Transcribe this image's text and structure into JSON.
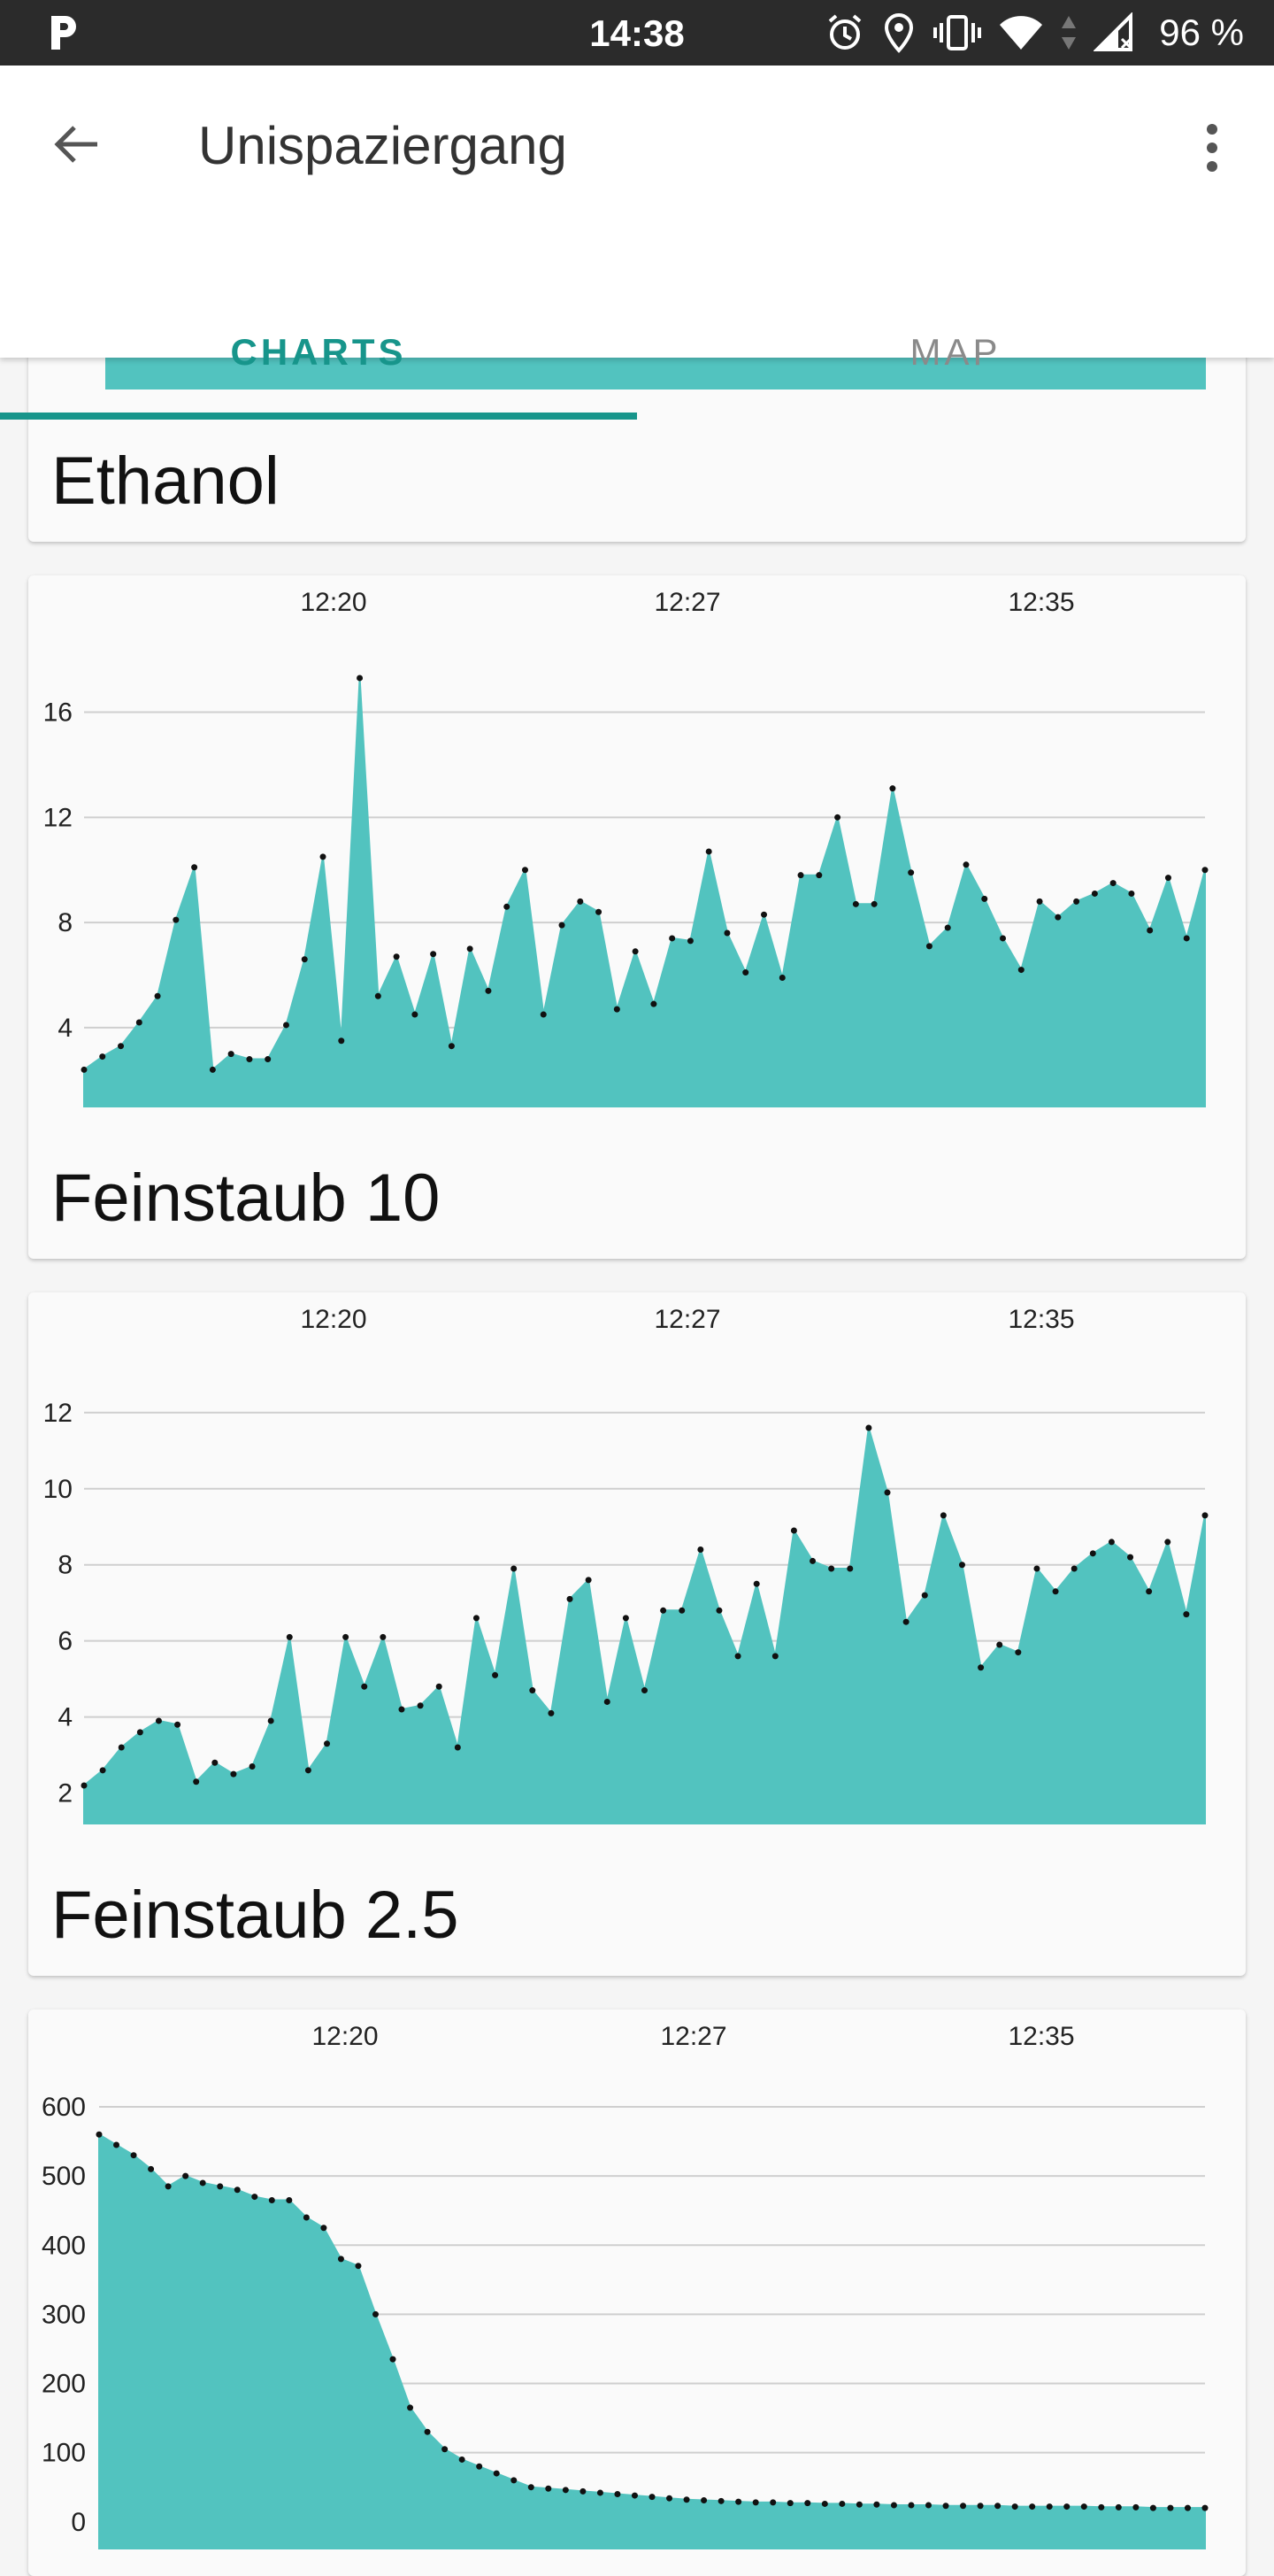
{
  "status_bar": {
    "time": "14:38",
    "battery": "96 %",
    "icons": [
      "p-icon",
      "alarm-icon",
      "location-icon",
      "vibrate-icon",
      "wifi-icon",
      "data-arrows-icon",
      "signal-icon"
    ]
  },
  "app_bar": {
    "title": "Unispaziergang",
    "icons": [
      "back-arrow-icon",
      "more-vert-icon"
    ]
  },
  "tabs": [
    {
      "label": "CHARTS",
      "active": true
    },
    {
      "label": "MAP",
      "active": false
    }
  ],
  "colors": {
    "accent": "#17958b",
    "fill": "#52c3bf",
    "grid": "#cfcfcf"
  },
  "cards": [
    {
      "title": "Ethanol"
    },
    {
      "title": "Feinstaub 10"
    },
    {
      "title": "Feinstaub 2.5"
    }
  ],
  "chart_data": [
    {
      "type": "area",
      "title": "Feinstaub 10",
      "x_ticks": [
        "12:20",
        "12:27",
        "12:35"
      ],
      "y_ticks": [
        4,
        8,
        12,
        16
      ],
      "ylim": [
        1,
        17.5
      ],
      "grid": true,
      "values": [
        2.4,
        2.9,
        3.3,
        4.2,
        5.2,
        8.1,
        10.1,
        2.4,
        3.0,
        2.8,
        2.8,
        4.1,
        6.6,
        10.5,
        3.5,
        17.3,
        5.2,
        6.7,
        4.5,
        6.8,
        3.3,
        7.0,
        5.4,
        8.6,
        10.0,
        4.5,
        7.9,
        8.8,
        8.4,
        4.7,
        6.9,
        4.9,
        7.4,
        7.3,
        10.7,
        7.6,
        6.1,
        8.3,
        5.9,
        9.8,
        9.8,
        12.0,
        8.7,
        8.7,
        13.1,
        9.9,
        7.1,
        7.8,
        10.2,
        8.9,
        7.4,
        6.2,
        8.8,
        8.2,
        8.8,
        9.1,
        9.5,
        9.1,
        7.7,
        9.7,
        7.4,
        10.0
      ]
    },
    {
      "type": "area",
      "title": "Feinstaub 2.5",
      "x_ticks": [
        "12:20",
        "12:27",
        "12:35"
      ],
      "y_ticks": [
        2,
        4,
        6,
        8,
        10,
        12
      ],
      "ylim": [
        1.2,
        12.6
      ],
      "grid": true,
      "values": [
        2.2,
        2.6,
        3.2,
        3.6,
        3.9,
        3.8,
        2.3,
        2.8,
        2.5,
        2.7,
        3.9,
        6.1,
        2.6,
        3.3,
        6.1,
        4.8,
        6.1,
        4.2,
        4.3,
        4.8,
        3.2,
        6.6,
        5.1,
        7.9,
        4.7,
        4.1,
        7.1,
        7.6,
        4.4,
        6.6,
        4.7,
        6.8,
        6.8,
        8.4,
        6.8,
        5.6,
        7.5,
        5.6,
        8.9,
        8.1,
        7.9,
        7.9,
        11.6,
        9.9,
        6.5,
        7.2,
        9.3,
        8.0,
        5.3,
        5.9,
        5.7,
        7.9,
        7.3,
        7.9,
        8.3,
        8.6,
        8.2,
        7.3,
        8.6,
        6.7,
        9.3
      ]
    },
    {
      "type": "area",
      "title": "",
      "x_ticks": [
        "12:20",
        "12:27",
        "12:35"
      ],
      "y_ticks": [
        0,
        100,
        200,
        300,
        400,
        500,
        600
      ],
      "ylim": [
        -40,
        600
      ],
      "grid": true,
      "values": [
        560,
        545,
        530,
        510,
        485,
        500,
        490,
        485,
        480,
        470,
        465,
        465,
        440,
        425,
        380,
        370,
        300,
        235,
        165,
        130,
        105,
        90,
        80,
        70,
        60,
        50,
        48,
        46,
        44,
        42,
        40,
        38,
        36,
        34,
        32,
        31,
        30,
        29,
        28,
        28,
        27,
        27,
        26,
        26,
        25,
        25,
        24,
        24,
        24,
        23,
        23,
        23,
        23,
        22,
        22,
        22,
        22,
        22,
        21,
        21,
        21,
        20,
        20,
        20,
        20
      ]
    }
  ]
}
